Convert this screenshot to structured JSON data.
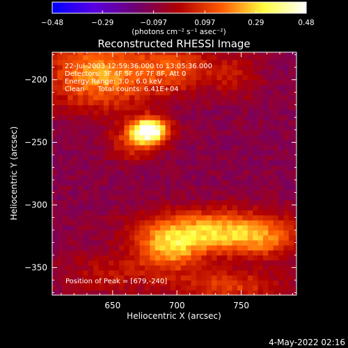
{
  "chart_data": {
    "type": "heatmap",
    "title": "Reconstructed RHESSI Image",
    "xlabel": "Heliocentric X (arcsec)",
    "ylabel": "Heliocentric Y (arcsec)",
    "xlim": [
      603,
      793
    ],
    "ylim": [
      -372,
      -178
    ],
    "x_ticks": [
      650,
      700,
      750
    ],
    "x_tick_labels": [
      "650",
      "700",
      "750"
    ],
    "y_ticks": [
      -200,
      -250,
      -300,
      -350
    ],
    "y_tick_labels": [
      "−200",
      "−250",
      "−300",
      "−350"
    ],
    "colorbar": {
      "range": [
        -0.48,
        0.48
      ],
      "ticks": [
        -0.48,
        -0.29,
        -0.097,
        0.097,
        0.29,
        0.48
      ],
      "tick_labels": [
        "−0.48",
        "−0.29",
        "−0.097",
        "0.097",
        "0.29",
        "0.48"
      ],
      "unit_label": "(photons cm⁻² s⁻¹ asec⁻²)",
      "colormap": [
        "#0000ff",
        "#5a00e0",
        "#700070",
        "#b00000",
        "#ff5a00",
        "#ffff40",
        "#ffffff"
      ]
    },
    "annotations": [
      "22-Jul-2003 12:59:36.000 to 13:05:36.000",
      "Detectors: 3F 4F 5F 6F 7F 8F, Att 0",
      "Energy Range: 3.0 - 6.0 keV",
      "Clean      Total counts: 6.41E+04"
    ],
    "peak_label": "Position of Peak = [679,-240]",
    "peak": {
      "x": 679,
      "y": -240,
      "value": 0.48
    },
    "sources": [
      {
        "x": 679,
        "y": -240,
        "sx": 10,
        "sy": 7,
        "amp": 0.58
      },
      {
        "x": 668,
        "y": -250,
        "sx": 14,
        "sy": 10,
        "amp": 0.2
      },
      {
        "x": 640,
        "y": -195,
        "sx": 30,
        "sy": 20,
        "amp": 0.33
      },
      {
        "x": 700,
        "y": -190,
        "sx": 20,
        "sy": 14,
        "amp": 0.2
      },
      {
        "x": 745,
        "y": -195,
        "sx": 14,
        "sy": 14,
        "amp": 0.12
      },
      {
        "x": 730,
        "y": -320,
        "sx": 40,
        "sy": 12,
        "amp": 0.34
      },
      {
        "x": 695,
        "y": -335,
        "sx": 18,
        "sy": 12,
        "amp": 0.28
      },
      {
        "x": 765,
        "y": -330,
        "sx": 22,
        "sy": 10,
        "amp": 0.15
      },
      {
        "x": 740,
        "y": -365,
        "sx": 30,
        "sy": 10,
        "amp": 0.2
      },
      {
        "x": 650,
        "y": -355,
        "sx": 30,
        "sy": 12,
        "amp": 0.12
      }
    ],
    "background": -0.1,
    "pixel_size": [
      4,
      4
    ],
    "timestamp": "4-May-2022 02:16"
  }
}
